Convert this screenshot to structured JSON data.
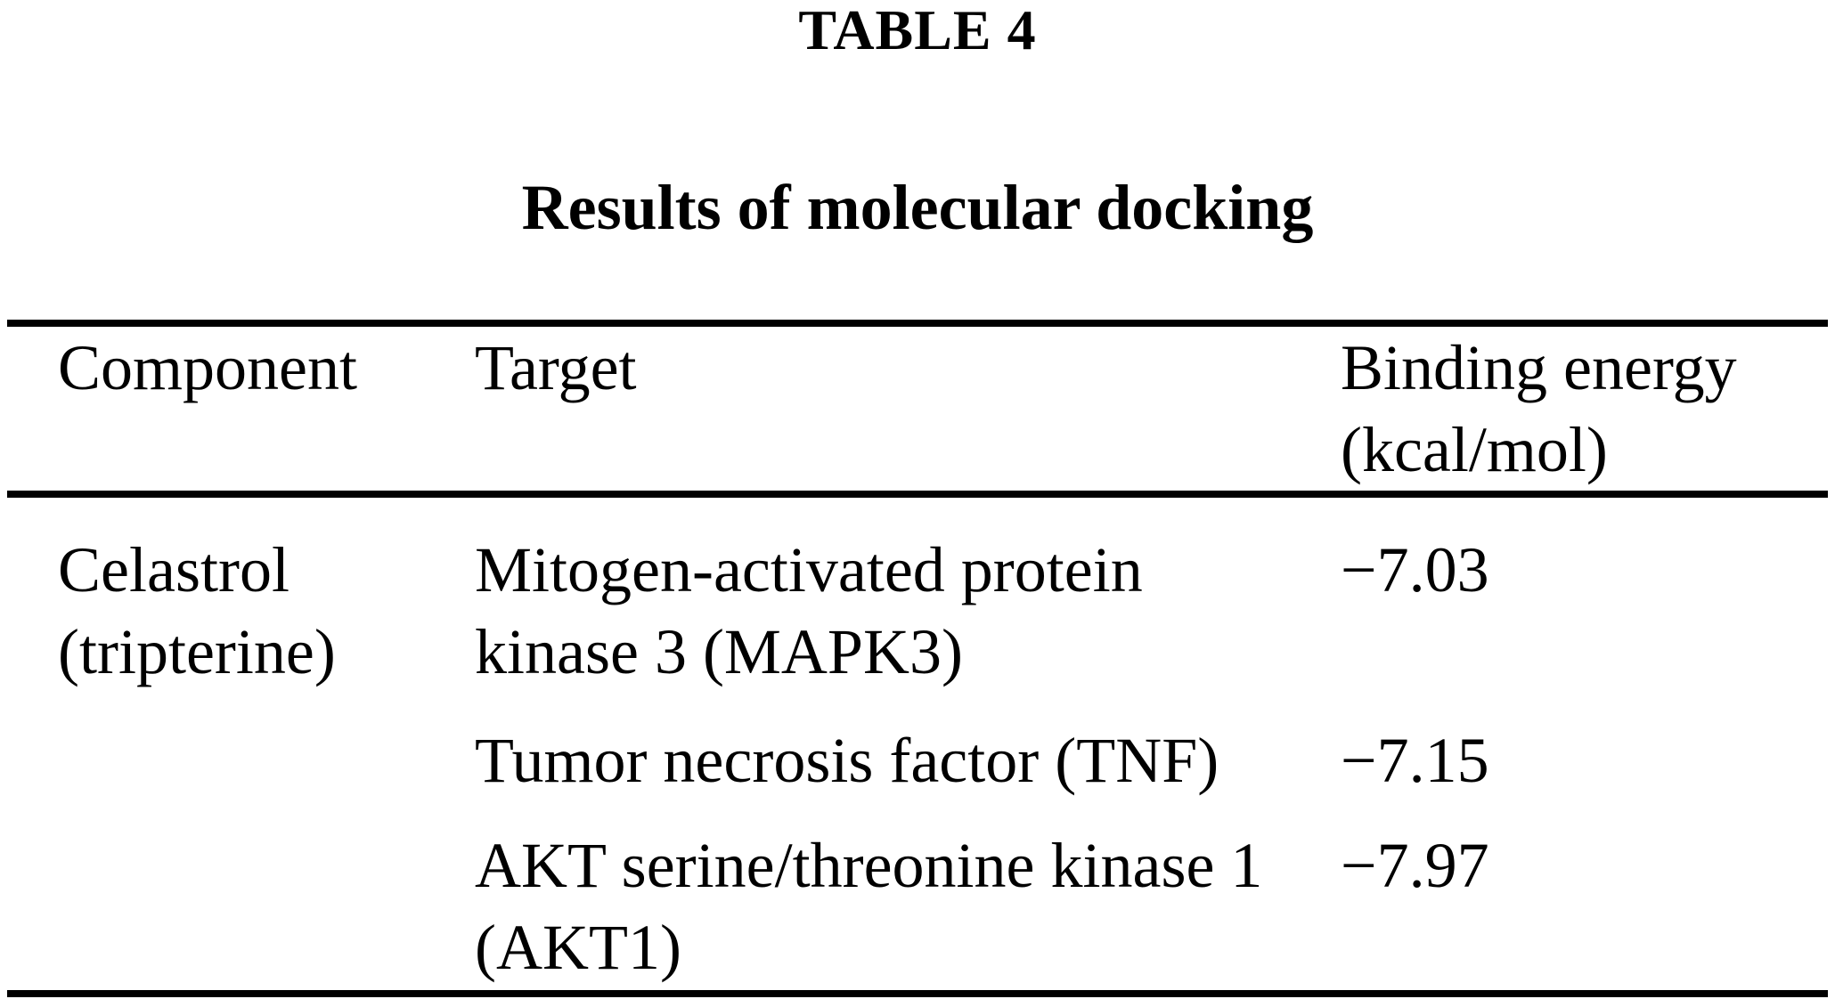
{
  "page": {
    "label": "TABLE 4",
    "title": "Results of molecular docking"
  },
  "table": {
    "headers": {
      "component": "Component",
      "target": "Target",
      "energy_line1": "Binding energy",
      "energy_line2": "(kcal/mol)"
    },
    "rows": [
      {
        "component_lines": [
          "Celastrol",
          "(tripterine)"
        ],
        "target_lines": [
          "Mitogen-activated protein",
          "kinase 3 (MAPK3)"
        ],
        "energy": "−7.03"
      },
      {
        "component_lines": [],
        "target_lines": [
          "Tumor necrosis factor (TNF)"
        ],
        "energy": "−7.15"
      },
      {
        "component_lines": [],
        "target_lines": [
          "AKT serine/threonine kinase 1",
          "(AKT1)"
        ],
        "energy": "−7.97"
      }
    ]
  },
  "chart_data": {
    "type": "table",
    "label": "TABLE 4",
    "title": "Results of molecular docking",
    "columns": [
      "Component",
      "Target",
      "Binding energy (kcal/mol)"
    ],
    "rows": [
      [
        "Celastrol (tripterine)",
        "Mitogen-activated protein kinase 3 (MAPK3)",
        -7.03
      ],
      [
        "",
        "Tumor necrosis factor (TNF)",
        -7.15
      ],
      [
        "",
        "AKT serine/threonine kinase 1 (AKT1)",
        -7.97
      ]
    ]
  },
  "colors": {
    "text": "#000000",
    "background": "#ffffff",
    "rule": "#000000"
  }
}
